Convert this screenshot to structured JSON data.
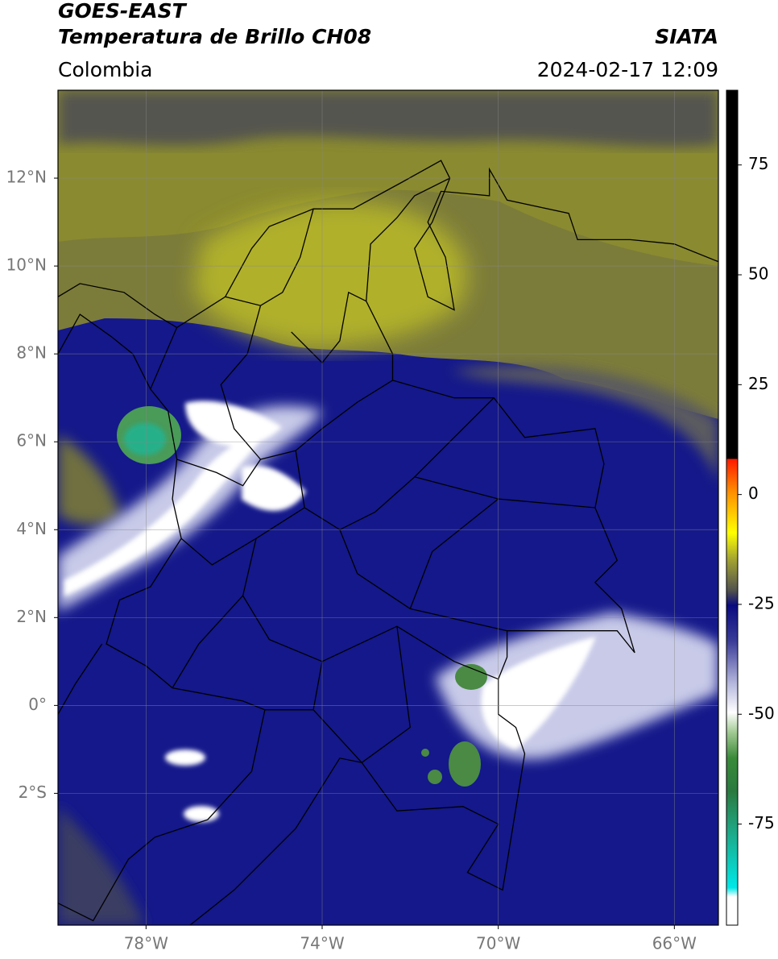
{
  "header": {
    "title": "GOES-EAST",
    "subtitle": "Temperatura de Brillo CH08",
    "source": "SIATA",
    "region": "Colombia",
    "datetime": "2024-02-17 12:09"
  },
  "map": {
    "lon_range": [
      -80,
      -65
    ],
    "lat_range": [
      -5,
      14
    ],
    "lon_ticks": [
      {
        "value": -78,
        "label": "78°W"
      },
      {
        "value": -74,
        "label": "74°W"
      },
      {
        "value": -70,
        "label": "70°W"
      },
      {
        "value": -66,
        "label": "66°W"
      }
    ],
    "lat_ticks": [
      {
        "value": 12,
        "label": "12°N"
      },
      {
        "value": 10,
        "label": "10°N"
      },
      {
        "value": 8,
        "label": "8°N"
      },
      {
        "value": 6,
        "label": "6°N"
      },
      {
        "value": 4,
        "label": "4°N"
      },
      {
        "value": 2,
        "label": "2°N"
      },
      {
        "value": 0,
        "label": "0°"
      },
      {
        "value": -2,
        "label": "2°S"
      }
    ],
    "grid": true
  },
  "colorbar": {
    "range": [
      -98,
      92
    ],
    "ticks": [
      75,
      50,
      25,
      0,
      -25,
      -50,
      -75
    ]
  }
}
